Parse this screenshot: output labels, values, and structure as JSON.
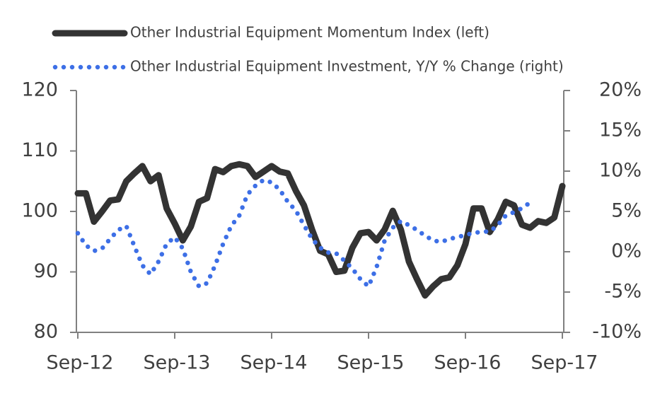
{
  "chart_data": {
    "type": "line",
    "categories": [
      "Sep-12",
      null,
      null,
      null,
      null,
      null,
      null,
      null,
      null,
      null,
      null,
      null,
      "Sep-13",
      null,
      null,
      null,
      null,
      null,
      null,
      null,
      null,
      null,
      null,
      null,
      "Sep-14",
      null,
      null,
      null,
      null,
      null,
      null,
      null,
      null,
      null,
      null,
      null,
      "Sep-15",
      null,
      null,
      null,
      null,
      null,
      null,
      null,
      null,
      null,
      null,
      null,
      "Sep-16",
      null,
      null,
      null,
      null,
      null,
      null,
      null,
      null,
      null,
      null,
      null,
      "Sep-17"
    ],
    "series": [
      {
        "name": "Other Industrial Equipment Momentum Index (left)",
        "color": "#333333",
        "style": "solid",
        "values": [
          103,
          103,
          98.3,
          100,
          101.8,
          102,
          105,
          106.3,
          107.5,
          105,
          106,
          100.5,
          98,
          95.2,
          97.5,
          101.6,
          102.2,
          107,
          106.5,
          107.5,
          107.8,
          107.5,
          105.7,
          106.6,
          107.5,
          106.6,
          106.3,
          103.4,
          101,
          97,
          93.5,
          92.9,
          90,
          90.2,
          94,
          96.4,
          96.6,
          95.2,
          97,
          100.1,
          97,
          91.7,
          88.8,
          86.1,
          87.6,
          88.8,
          89.1,
          91.1,
          94.6,
          100.5,
          100.5,
          96.6,
          98.7,
          101.6,
          101,
          97.8,
          97.3,
          98.4,
          98.1,
          99,
          104.2
        ]
      },
      {
        "name": "Other Industrial Equipment Investment, Y/Y % Change (right)",
        "color": "#3d6fe6",
        "style": "dotted",
        "axis": "y2",
        "values": [
          2.3,
          0.8,
          0.1,
          0.4,
          1.6,
          2.7,
          3.2,
          0.7,
          -1.7,
          -2.8,
          -1.2,
          1,
          1.8,
          0.4,
          -2.5,
          -4.3,
          -3.9,
          -1.7,
          1,
          3.2,
          4.5,
          7.1,
          8.2,
          8.9,
          8.6,
          7.7,
          6.2,
          5.1,
          3.3,
          1.6,
          0.5,
          -0.1,
          -0.2,
          -1.1,
          -2.1,
          -3.4,
          -4.3,
          -1.9,
          1.4,
          3,
          3.8,
          3.3,
          2.7,
          2,
          1.4,
          1.2,
          1.6,
          1.8,
          2.1,
          2.3,
          2.5,
          2.5,
          3.3,
          4.5,
          4.9,
          5.4,
          6.1,
          null,
          null,
          null,
          null
        ]
      }
    ],
    "ylim": [
      80,
      120
    ],
    "yticks": [
      80,
      90,
      100,
      110,
      120
    ],
    "y2lim": [
      -10,
      20
    ],
    "y2ticks": [
      {
        "value": -10,
        "label": "-10%"
      },
      {
        "value": -5,
        "label": "-5%"
      },
      {
        "value": 0,
        "label": "0%"
      },
      {
        "value": 5,
        "label": "5%"
      },
      {
        "value": 10,
        "label": "10%"
      },
      {
        "value": 15,
        "label": "15%"
      },
      {
        "value": 20,
        "label": "20%"
      }
    ],
    "legend": "top"
  }
}
